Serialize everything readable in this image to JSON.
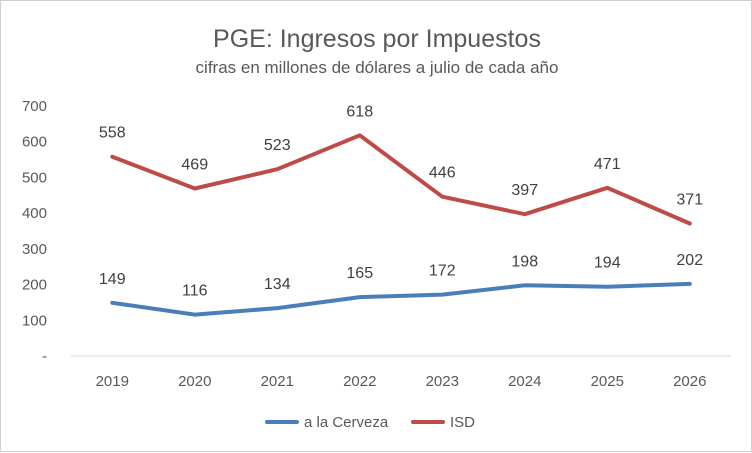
{
  "chart_data": {
    "type": "line",
    "title": "PGE: Ingresos por Impuestos",
    "subtitle": "cifras en millones de dólares a julio de cada año",
    "categories": [
      "2019",
      "2020",
      "2021",
      "2022",
      "2023",
      "2024",
      "2025",
      "2026"
    ],
    "yticks": [
      "-",
      "100",
      "200",
      "300",
      "400",
      "500",
      "600",
      "700"
    ],
    "ylim": [
      0,
      700
    ],
    "grid": false,
    "legend": "bottom",
    "series": [
      {
        "name": "a la Cerveza",
        "color": "#4a7ebb",
        "values": [
          149,
          116,
          134,
          165,
          172,
          198,
          194,
          202
        ]
      },
      {
        "name": "ISD",
        "color": "#be4b48",
        "values": [
          558,
          469,
          523,
          618,
          446,
          397,
          471,
          371
        ]
      }
    ]
  }
}
